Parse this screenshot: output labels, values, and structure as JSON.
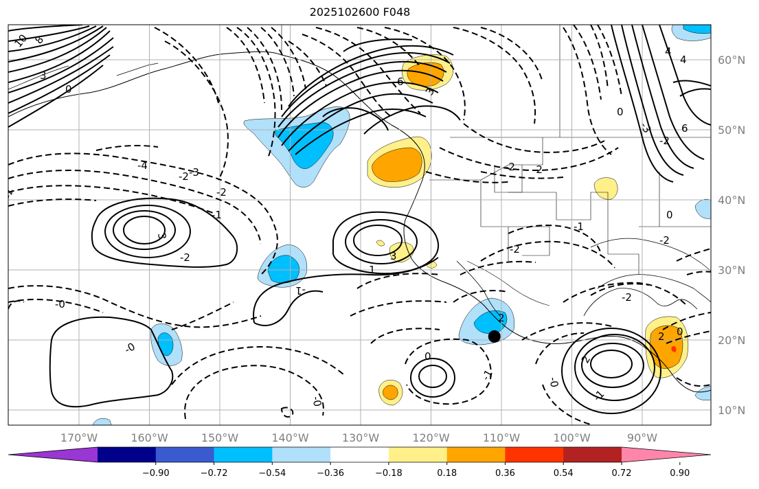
{
  "title": "2025102600 F048",
  "map": {
    "lon_range": [
      -180,
      -80
    ],
    "lat_range": [
      8,
      66
    ],
    "lon_ticks": [
      {
        "value": -170,
        "label": "170°W"
      },
      {
        "value": -160,
        "label": "160°W"
      },
      {
        "value": -150,
        "label": "150°W"
      },
      {
        "value": -140,
        "label": "140°W"
      },
      {
        "value": -130,
        "label": "130°W"
      },
      {
        "value": -120,
        "label": "120°W"
      },
      {
        "value": -110,
        "label": "110°W"
      },
      {
        "value": -100,
        "label": "100°W"
      },
      {
        "value": -90,
        "label": "90°W"
      }
    ],
    "lat_ticks": [
      {
        "value": 60,
        "label": "60°N"
      },
      {
        "value": 50,
        "label": "50°N"
      },
      {
        "value": 40,
        "label": "40°N"
      },
      {
        "value": 30,
        "label": "30°N"
      },
      {
        "value": 20,
        "label": "20°N"
      },
      {
        "value": 10,
        "label": "10°N"
      }
    ],
    "grid": true,
    "marker": {
      "lon": -111,
      "lat": 20.5
    },
    "contour_labels": [
      "10",
      "8",
      "3",
      "0",
      "-4",
      "-3",
      "-2",
      "-0",
      "3",
      "3",
      "-2",
      "-1",
      "-2",
      "-1",
      "1",
      "-0",
      "0",
      "-0",
      "-0",
      "0",
      "-2",
      "-2",
      "-2",
      "6",
      "3",
      "-2",
      "-2",
      "4",
      "4",
      "-3",
      "6",
      "0",
      "-1",
      "-2",
      "-2",
      "2",
      "-1",
      "-1",
      "2",
      "2",
      "0"
    ]
  },
  "colorbar": {
    "colors": [
      "#9a36d3",
      "#00008b",
      "#3a5bd0",
      "#00bfff",
      "#b0e0fa",
      "#ffffff",
      "#fff08a",
      "#ffa500",
      "#ff3300",
      "#b22222",
      "#ff86aa"
    ],
    "extend": "both",
    "tick_labels": [
      "−0.90",
      "−0.72",
      "−0.54",
      "−0.36",
      "−0.18",
      "0.18",
      "0.36",
      "0.54",
      "0.72",
      "0.90"
    ]
  }
}
